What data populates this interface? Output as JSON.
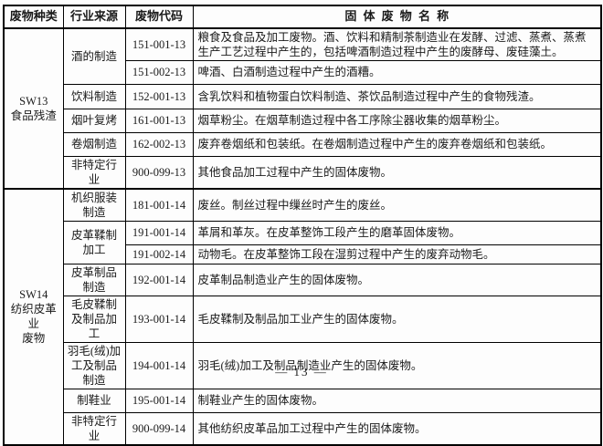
{
  "colors": {
    "text": "#1a1a1a",
    "border": "#000000",
    "background": "#fdfdfd"
  },
  "footer": {
    "page_number_label": "—  13  —"
  },
  "table": {
    "headers": {
      "category": "废物种类",
      "industry": "行业来源",
      "code": "废物代码",
      "name": "固体废物名称"
    },
    "sections": [
      {
        "category_lines": {
          "0": "SW13",
          "1": "食品残渣",
          "2": ""
        },
        "rows": [
          {
            "industry": "酒的制造",
            "code": "151-001-13",
            "name": "粮食及食品及加工废物。酒、饮料和精制茶制造业在发酵、过滤、蒸煮、蒸煮生产工艺过程中产生的，包括啤酒制造过程中产生的废酵母、废硅藻土。"
          },
          {
            "industry": "",
            "code": "151-002-13",
            "name": "啤酒、白酒制造过程中产生的酒糟。"
          },
          {
            "industry": "饮料制造",
            "code": "152-001-13",
            "name": "含乳饮料和植物蛋白饮料制造、茶饮品制造过程中产生的食物残渣。"
          },
          {
            "industry": "烟叶复烤",
            "code": "161-001-13",
            "name": "烟草粉尘。在烟草制造过程中各工序除尘器收集的烟草粉尘。"
          },
          {
            "industry": "卷烟制造",
            "code": "162-002-13",
            "name": "废弃卷烟纸和包装纸。在卷烟制造过程中产生的废弃卷烟纸和包装纸。"
          },
          {
            "industry": "非特定行业",
            "code": "900-099-13",
            "name": "其他食品加工过程中产生的固体废物。"
          }
        ]
      },
      {
        "category_lines": {
          "0": "SW14",
          "1": "纺织皮革业",
          "2": "废物"
        },
        "rows": [
          {
            "industry": "机织服装制造",
            "code": "181-001-14",
            "name": "废丝。制丝过程中缫丝时产生的废丝。"
          },
          {
            "industry": "皮革鞣制加工",
            "code": "191-001-14",
            "name": "革屑和革灰。在皮革整饰工段产生的磨革固体废物。"
          },
          {
            "industry": "",
            "code": "191-002-14",
            "name": "动物毛。在皮革整饰工段在湿剪过程中产生的废弃动物毛。"
          },
          {
            "industry": "皮革制品制造",
            "code": "192-001-14",
            "name": "皮革制品制造业产生的固体废物。"
          },
          {
            "industry": "毛皮鞣制及制品加工",
            "code": "193-001-14",
            "name": "毛皮鞣制及制品加工业产生的固体废物。"
          },
          {
            "industry": "羽毛(绒)加工及制品制造",
            "code": "194-001-14",
            "name": "羽毛(绒)加工及制品制造业产生的固体废物。"
          },
          {
            "industry": "制鞋业",
            "code": "195-001-14",
            "name": "制鞋业产生的固体废物。"
          },
          {
            "industry": "非特定行业",
            "code": "900-099-14",
            "name": "其他纺织皮革品加工过程中产生的固体废物。"
          }
        ]
      }
    ]
  }
}
